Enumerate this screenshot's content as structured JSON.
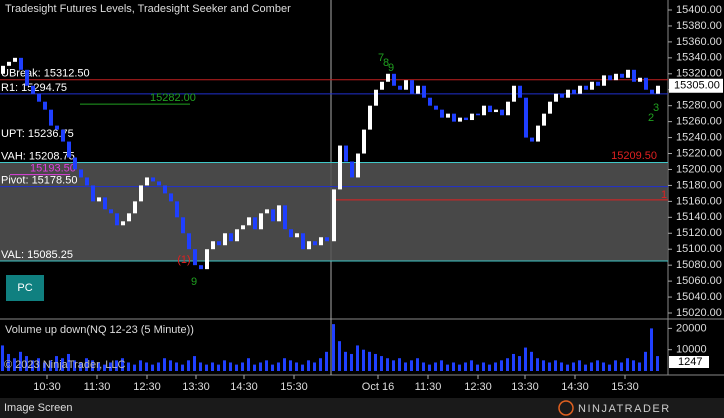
{
  "chart_data": {
    "type": "candlestick",
    "title": "Tradesight Futures Levels, Tradesight Seeker and Comber",
    "ylim": [
      15010,
      15410
    ],
    "yticks": [
      {
        "value": 15400,
        "label": "15400.00"
      },
      {
        "value": 15380,
        "label": "15380.00"
      },
      {
        "value": 15360,
        "label": "15360.00"
      },
      {
        "value": 15340,
        "label": "15340.00"
      },
      {
        "value": 15320,
        "label": "15320.00"
      },
      {
        "value": 15300,
        "label": "15300.00"
      },
      {
        "value": 15280,
        "label": "15280.00"
      },
      {
        "value": 15260,
        "label": "15260.00"
      },
      {
        "value": 15240,
        "label": "15240.00"
      },
      {
        "value": 15220,
        "label": "15220.00"
      },
      {
        "value": 15200,
        "label": "15200.00"
      },
      {
        "value": 15180,
        "label": "15180.00"
      },
      {
        "value": 15160,
        "label": "15160.00"
      },
      {
        "value": 15140,
        "label": "15140.00"
      },
      {
        "value": 15120,
        "label": "15120.00"
      },
      {
        "value": 15100,
        "label": "15100.00"
      },
      {
        "value": 15080,
        "label": "15080.00"
      },
      {
        "value": 15060,
        "label": "15060.00"
      },
      {
        "value": 15040,
        "label": "15040.00"
      },
      {
        "value": 15020,
        "label": "15020.00"
      }
    ],
    "open": 15320,
    "closes": [
      15330,
      15335,
      15340,
      15325,
      15305,
      15295,
      15285,
      15275,
      15255,
      15250,
      15235,
      15215,
      15200,
      15190,
      15180,
      15160,
      15165,
      15150,
      15145,
      15130,
      15135,
      15145,
      15160,
      15180,
      15190,
      15185,
      15180,
      15170,
      15160,
      15140,
      15120,
      15100,
      15080,
      15075,
      15100,
      15110,
      15105,
      15120,
      15110,
      15125,
      15130,
      15140,
      15125,
      15145,
      15150,
      15135,
      15155,
      15125,
      15115,
      15120,
      15100,
      15110,
      15105,
      15115,
      15110,
      15175,
      15230,
      15210,
      15190,
      15220,
      15250,
      15280,
      15300,
      15310,
      15320,
      15305,
      15300,
      15312,
      15295,
      15305,
      15290,
      15280,
      15275,
      15265,
      15270,
      15260,
      15265,
      15262,
      15270,
      15268,
      15280,
      15272,
      15275,
      15268,
      15285,
      15305,
      15290,
      15240,
      15235,
      15255,
      15270,
      15285,
      15295,
      15290,
      15300,
      15295,
      15305,
      15300,
      15310,
      15305,
      15318,
      15312,
      15320,
      15315,
      15325,
      15310,
      15315,
      15300,
      15295,
      15305
    ],
    "up_color": "#ffffff",
    "down_color": "#1f3fff",
    "current_price": {
      "value": 15305,
      "label": "15305.00"
    },
    "levels": [
      {
        "label": "UBreak: 15312.50",
        "value": 15312.5,
        "color": "#c02020"
      },
      {
        "label": "R1: 15294.75",
        "value": 15294.75,
        "color": "#2030d0"
      },
      {
        "label": "UPT: 15236.75",
        "value": 15236.75,
        "color": null
      },
      {
        "label": "VAH: 15208.75",
        "value": 15208.75,
        "color": "#40c8c8"
      },
      {
        "label": "Pivot: 15178.50",
        "value": 15178.5,
        "color": "#2030d0"
      },
      {
        "label": "VAL: 15085.25",
        "value": 15085.25,
        "color": "#40c8c8"
      }
    ],
    "value_area_color": "#555555",
    "marker_levels": [
      {
        "label": "15282.00",
        "value": 15282,
        "color": "#20a020"
      },
      {
        "label": "15209.50",
        "value": 15209.5,
        "color": "#e02020"
      },
      {
        "label": "15193.50",
        "value": 15193.5,
        "color": "#e040e0"
      }
    ],
    "annotations": [
      "7",
      "8",
      "9",
      "2",
      "3",
      "9",
      "(1)",
      "1"
    ],
    "button": "PC",
    "session_label": "Oct 16",
    "time_labels": [
      "10:30",
      "11:30",
      "12:30",
      "13:30",
      "14:30",
      "15:30",
      "Oct 16",
      "11:30",
      "12:30",
      "13:30",
      "14:30",
      "15:30"
    ],
    "volume_title": "Volume up down(NQ 12-23 (5 Minute))",
    "volume_ylim": [
      0,
      23000
    ],
    "volume_yticks": [
      20000,
      10000
    ],
    "volumes": [
      12000,
      8000,
      6000,
      9000,
      7000,
      5000,
      6000,
      4000,
      5000,
      7000,
      6000,
      8000,
      5000,
      4000,
      6000,
      5000,
      4000,
      3000,
      4000,
      5000,
      6000,
      4000,
      3000,
      5000,
      4000,
      3000,
      4000,
      6000,
      5000,
      4000,
      3000,
      5000,
      7000,
      4000,
      3000,
      4000,
      3000,
      5000,
      4000,
      3000,
      4000,
      6000,
      3000,
      4000,
      5000,
      3000,
      4000,
      6000,
      5000,
      4000,
      3000,
      5000,
      4000,
      6000,
      9000,
      22000,
      14000,
      9000,
      8000,
      12000,
      10000,
      9000,
      8000,
      7000,
      6000,
      5000,
      6000,
      4000,
      5000,
      6000,
      4000,
      3000,
      4000,
      5000,
      3000,
      4000,
      3000,
      4000,
      5000,
      3000,
      4000,
      3000,
      4000,
      5000,
      6000,
      8000,
      7000,
      11000,
      9000,
      6000,
      5000,
      4000,
      5000,
      4000,
      3000,
      4000,
      5000,
      3000,
      4000,
      5000,
      4000,
      3000,
      5000,
      4000,
      6000,
      5000,
      4000,
      9000,
      20000,
      7000
    ],
    "volume_color": "#2040ff",
    "current_volume": 1247,
    "copyright": "© 2023 NinjaTrader, LLC",
    "footer": "Image Screen",
    "logo": "NINJATRADER"
  }
}
